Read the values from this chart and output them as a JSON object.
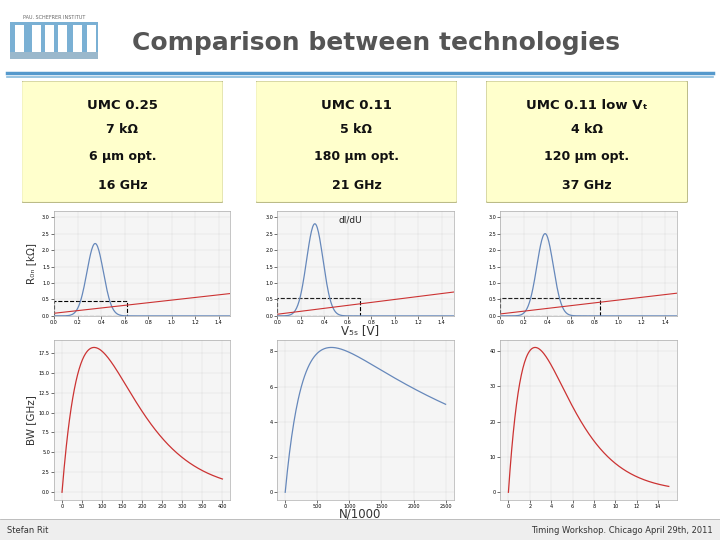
{
  "title": "Comparison between technologies",
  "title_color": "#555555",
  "title_fontsize": 18,
  "bg_color": "#ffffff",
  "header_bar_color1": "#5599cc",
  "header_bar_color2": "#88bbdd",
  "footer_left": "Stefan Rit",
  "footer_right": "Timing Workshop. Chicago April 29th, 2011",
  "boxes": [
    {
      "lines": [
        "UMC 0.25",
        "7 kΩ",
        "6 μm opt.",
        "16 GHz"
      ],
      "bg": "#ffffcc"
    },
    {
      "lines": [
        "UMC 0.11",
        "5 kΩ",
        "180 μm opt.",
        "21 GHz"
      ],
      "bg": "#ffffcc"
    },
    {
      "lines": [
        "UMC 0.11 low Vₜ",
        "4 kΩ",
        "120 μm opt.",
        "37 GHz"
      ],
      "bg": "#ffffcc"
    }
  ],
  "ylabel_top": "R₀ₙ [kΩ]",
  "xlabel_top": "V₅ₛ [V]",
  "ylabel_bottom": "BW [GHz]",
  "xlabel_bottom": "N/1000",
  "annotation_dIdu": "dI/dU",
  "plot_line_color_blue": "#6688bb",
  "plot_line_color_red": "#cc3333",
  "grid_color": "#cccccc",
  "box_text_color": "#111111"
}
